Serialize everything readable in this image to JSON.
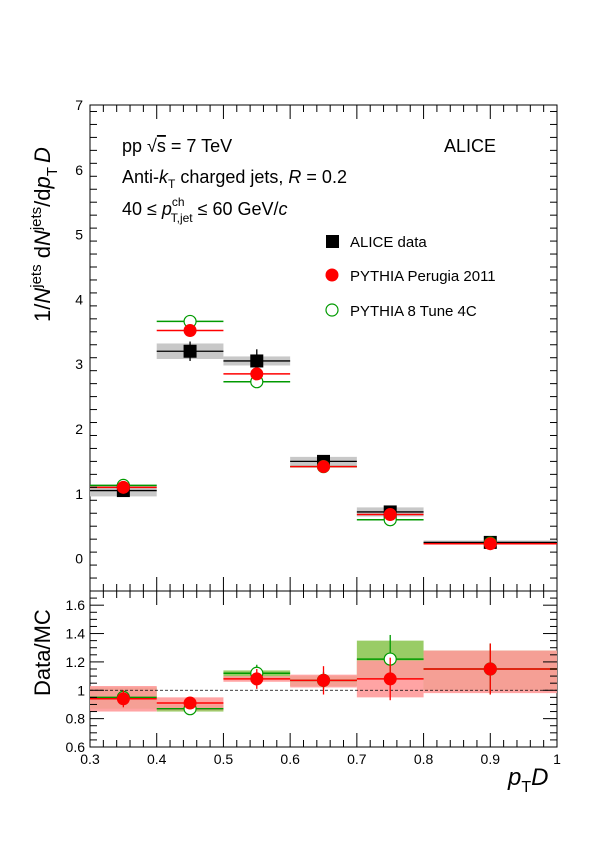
{
  "colors": {
    "data": "#000000",
    "data_band": "#c8c8c8",
    "perugia": "#ff0000",
    "perugia_band": "#ff9a9a",
    "tune4c": "#009a00",
    "tune4c_band": "#99cc66"
  },
  "chart_data": [
    {
      "type": "scatter",
      "panel": "top",
      "xlim": [
        0.3,
        1.0
      ],
      "ylim": [
        -0.5,
        7
      ],
      "yticks": [
        0,
        1,
        2,
        3,
        4,
        5,
        6,
        7
      ],
      "ylabel": {
        "a": "1/",
        "b": "N",
        "c": "jets",
        "d": " d",
        "e": "N",
        "f": "jets",
        "g": "/d",
        "h": "p",
        "i": "T",
        "j": "D"
      },
      "annotations": {
        "energy": {
          "a": "pp ",
          "b": "√",
          "c": "s",
          "d": " = 7 TeV"
        },
        "algo": {
          "a": "Anti-",
          "b": "k",
          "c": "T",
          "d": "  charged jets, ",
          "e": "R",
          "f": " = 0.2"
        },
        "range": {
          "a": "40 ≤ ",
          "b": "p",
          "c": "ch",
          "d": "T,jet",
          "e": " ≤ 60 GeV/",
          "f": "c"
        },
        "experiment": "ALICE"
      },
      "legend": [
        "ALICE data",
        "PYTHIA Perugia 2011",
        "PYTHIA 8 Tune 4C"
      ],
      "bins": [
        [
          0.3,
          0.4
        ],
        [
          0.4,
          0.5
        ],
        [
          0.5,
          0.6
        ],
        [
          0.6,
          0.7
        ],
        [
          0.7,
          0.8
        ],
        [
          0.8,
          1.0
        ]
      ],
      "x": [
        0.35,
        0.45,
        0.55,
        0.65,
        0.75,
        0.9
      ],
      "series": [
        {
          "name": "ALICE data",
          "values": [
            1.05,
            3.2,
            3.05,
            1.5,
            0.72,
            0.25
          ],
          "stat_err": [
            0.07,
            0.15,
            0.18,
            0.06,
            0.04,
            0.02
          ],
          "sys_err": [
            0.09,
            0.12,
            0.07,
            0.07,
            0.07,
            0.03
          ]
        },
        {
          "name": "PYTHIA Perugia 2011",
          "values": [
            1.1,
            3.52,
            2.85,
            1.42,
            0.68,
            0.23
          ]
        },
        {
          "name": "PYTHIA 8 Tune 4C",
          "values": [
            1.13,
            3.66,
            2.73,
            1.42,
            0.6,
            0.24
          ]
        }
      ]
    },
    {
      "type": "scatter",
      "panel": "ratio",
      "xlim": [
        0.3,
        1.0
      ],
      "ylim": [
        0.6,
        1.7
      ],
      "yticks": [
        0.6,
        0.8,
        1,
        1.2,
        1.4,
        1.6
      ],
      "ytick_labels": [
        "0.6",
        "0.8",
        "1",
        "1.2",
        "1.4",
        "1.6"
      ],
      "xticks": [
        0.3,
        0.4,
        0.5,
        0.6,
        0.7,
        0.8,
        0.9,
        1
      ],
      "xtick_labels": [
        "0.3",
        "0.4",
        "0.5",
        "0.6",
        "0.7",
        "0.8",
        "0.9",
        "1"
      ],
      "ylabel": "Data/MC",
      "xlabel": {
        "a": "p",
        "b": "T",
        "c": "D"
      },
      "reference_line": 1,
      "series": [
        {
          "name": "PYTHIA Perugia 2011",
          "values": [
            0.94,
            0.91,
            1.08,
            1.07,
            1.08,
            1.15
          ],
          "stat_err": [
            0.06,
            0.04,
            0.07,
            0.1,
            0.15,
            0.18
          ],
          "band_lo": [
            0.85,
            0.86,
            1.06,
            1.02,
            0.95,
            0.98
          ],
          "band_hi": [
            1.03,
            0.95,
            1.1,
            1.11,
            1.21,
            1.28
          ]
        },
        {
          "name": "PYTHIA 8 Tune 4C",
          "values": [
            0.95,
            0.87,
            1.12,
            1.07,
            1.22,
            1.15
          ],
          "stat_err": [
            0.04,
            0.03,
            0.06,
            0.06,
            0.17,
            0.18
          ],
          "band_lo": [
            0.87,
            0.85,
            1.08,
            1.03,
            1.08,
            1.0
          ],
          "band_hi": [
            1.02,
            0.9,
            1.14,
            1.1,
            1.35,
            1.28
          ]
        }
      ]
    }
  ]
}
